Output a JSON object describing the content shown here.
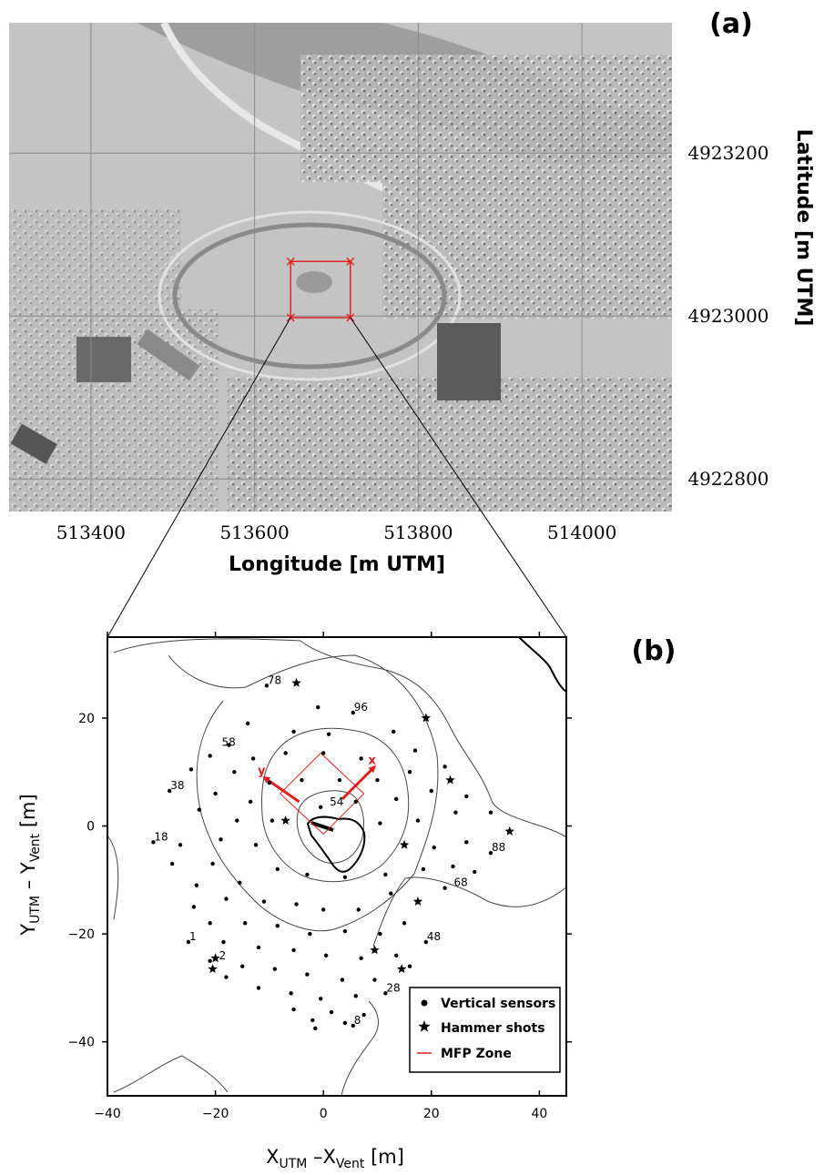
{
  "figure": {
    "panel_a_label": "(a)",
    "panel_b_label": "(b)"
  },
  "colors": {
    "frame": "#000000",
    "grid": "#8c8c8c",
    "mfp": "#e02020",
    "contour": "#444444",
    "terrain_dark": "#7a7a7a",
    "terrain_light": "#cfcfcf"
  },
  "chart_data": [
    {
      "type": "map",
      "panel": "(a)",
      "xlabel": "Longitude [m UTM]",
      "ylabel": "Latitude [m UTM]",
      "xlim": [
        513300,
        514110
      ],
      "ylim": [
        4922760,
        4923360
      ],
      "x_ticks": [
        513400,
        513600,
        513800,
        514000
      ],
      "y_ticks": [
        4922800,
        4923000,
        4923200
      ],
      "grid": true,
      "inset_box": {
        "x": [
          513644,
          513717
        ],
        "y": [
          4922998,
          4923067
        ]
      }
    },
    {
      "type": "scatter",
      "panel": "(b)",
      "xlabel": "X_UTM – X_Vent [m]",
      "ylabel": "Y_UTM – Y_Vent [m]",
      "xlabel_parts": {
        "a": "X",
        "a_sub": "UTM",
        "mid": " –X",
        "b_sub": "Vent",
        "unit": " [m]"
      },
      "ylabel_parts": {
        "a": "Y",
        "a_sub": "UTM",
        "mid": " – Y",
        "b_sub": "Vent",
        "unit": " [m]"
      },
      "xlim": [
        -40,
        45
      ],
      "ylim": [
        -50,
        35
      ],
      "x_ticks": [
        -40,
        -20,
        0,
        20,
        40
      ],
      "y_ticks": [
        -40,
        -20,
        0,
        20
      ],
      "legend_position": "bottom-right",
      "legend": [
        {
          "label": "Vertical sensors",
          "symbol": "circle"
        },
        {
          "label": "Hammer shots",
          "symbol": "star"
        },
        {
          "label": "MFP Zone",
          "symbol": "line"
        }
      ],
      "sensors": [
        [
          -10.5,
          26.0
        ],
        [
          -1,
          22.0
        ],
        [
          5.5,
          21.0
        ],
        [
          -14,
          19.0
        ],
        [
          -5.5,
          17.5
        ],
        [
          1,
          17.0
        ],
        [
          -17.5,
          15.0
        ],
        [
          13,
          17.5
        ],
        [
          -21,
          13.0
        ],
        [
          -13,
          12.5
        ],
        [
          -7,
          13.5
        ],
        [
          0,
          13.5
        ],
        [
          7,
          12.5
        ],
        [
          17,
          14.0
        ],
        [
          -24.5,
          10.5
        ],
        [
          -16.5,
          10.0
        ],
        [
          -10,
          8.0
        ],
        [
          -4,
          8.5
        ],
        [
          3,
          8.5
        ],
        [
          10,
          8.5
        ],
        [
          16,
          10.0
        ],
        [
          22.5,
          11.0
        ],
        [
          -28.5,
          6.5
        ],
        [
          -20,
          6.0
        ],
        [
          -13.5,
          4.5
        ],
        [
          -0.5,
          3.5
        ],
        [
          6,
          4.5
        ],
        [
          13.5,
          5.0
        ],
        [
          20,
          6.5
        ],
        [
          26.5,
          5.5
        ],
        [
          -23,
          3.0
        ],
        [
          -16,
          1.0
        ],
        [
          -9.5,
          1.0
        ],
        [
          10.5,
          0.5
        ],
        [
          17.5,
          1.0
        ],
        [
          24.5,
          2.5
        ],
        [
          31,
          2.5
        ],
        [
          -31.5,
          -3.0
        ],
        [
          -26.5,
          -3.5
        ],
        [
          -19,
          -2.5
        ],
        [
          -12.5,
          -3.5
        ],
        [
          20.5,
          -4.0
        ],
        [
          26.5,
          -3.0
        ],
        [
          -28,
          -7.0
        ],
        [
          -20.5,
          -7.0
        ],
        [
          -8.5,
          -8.0
        ],
        [
          -3,
          -9.0
        ],
        [
          4,
          -9.5
        ],
        [
          11.5,
          -9.0
        ],
        [
          18.5,
          -8.0
        ],
        [
          24,
          -7.5
        ],
        [
          28,
          -8.5
        ],
        [
          31,
          -5.0
        ],
        [
          -23.5,
          -11.0
        ],
        [
          -15.5,
          -10.5
        ],
        [
          22.5,
          -11.5
        ],
        [
          -18,
          -13.5
        ],
        [
          -11,
          -14.0
        ],
        [
          -5,
          -14.5
        ],
        [
          0,
          -15.5
        ],
        [
          6.5,
          -15.5
        ],
        [
          12.5,
          -12.5
        ],
        [
          -24,
          -15.0
        ],
        [
          -21,
          -18.0
        ],
        [
          -14.5,
          -18.0
        ],
        [
          -8.5,
          -18.5
        ],
        [
          -2.5,
          -20.0
        ],
        [
          4,
          -19.5
        ],
        [
          10.5,
          -20.0
        ],
        [
          15,
          -18.0
        ],
        [
          -25,
          -21.5
        ],
        [
          -18.5,
          -21.5
        ],
        [
          -12,
          -22.5
        ],
        [
          -5.5,
          -23.0
        ],
        [
          0.5,
          -24.0
        ],
        [
          7,
          -24.5
        ],
        [
          13.5,
          -24.0
        ],
        [
          19,
          -21.5
        ],
        [
          -21,
          -25.0
        ],
        [
          -15,
          -26.0
        ],
        [
          -9,
          -26.5
        ],
        [
          -3,
          -27.5
        ],
        [
          3.5,
          -28.5
        ],
        [
          9.5,
          -28.5
        ],
        [
          16,
          -26.0
        ],
        [
          -18,
          -28.0
        ],
        [
          -12,
          -30.0
        ],
        [
          -6,
          -31.0
        ],
        [
          -0.5,
          -32.0
        ],
        [
          6,
          -31.5
        ],
        [
          11.5,
          -31.0
        ],
        [
          -5.5,
          -34.0
        ],
        [
          1.5,
          -34.5
        ],
        [
          -2,
          -36.0
        ],
        [
          4,
          -36.5
        ],
        [
          7.5,
          -35.0
        ],
        [
          -1.5,
          -37.5
        ],
        [
          5.5,
          -37.0
        ]
      ],
      "hammer_shots": [
        [
          -5,
          26.5
        ],
        [
          19,
          20.0
        ],
        [
          -7,
          1.0
        ],
        [
          23.5,
          8.5
        ],
        [
          34.5,
          -1.0
        ],
        [
          15,
          -3.5
        ],
        [
          17.5,
          -14.0
        ],
        [
          9.5,
          -23.0
        ],
        [
          14.5,
          -26.5
        ],
        [
          -20.5,
          -26.5
        ],
        [
          -20,
          -24.5
        ]
      ],
      "sensor_labels": [
        {
          "label": "78",
          "x": -10.5,
          "y": 26.0
        },
        {
          "label": "96",
          "x": 5.5,
          "y": 21.0
        },
        {
          "label": "58",
          "x": -19,
          "y": 14.5
        },
        {
          "label": "38",
          "x": -28.5,
          "y": 6.5
        },
        {
          "label": "54",
          "x": 1,
          "y": 3.5
        },
        {
          "label": "18",
          "x": -31.5,
          "y": -3.0
        },
        {
          "label": "88",
          "x": 31,
          "y": -5.0
        },
        {
          "label": "68",
          "x": 24,
          "y": -11.5
        },
        {
          "label": "1",
          "x": -25,
          "y": -21.5
        },
        {
          "label": "48",
          "x": 19,
          "y": -21.5
        },
        {
          "label": "2",
          "x": -19.5,
          "y": -25.0
        },
        {
          "label": "28",
          "x": 11.5,
          "y": -31.0
        },
        {
          "label": "8",
          "x": 5.5,
          "y": -37.0
        }
      ],
      "mfp_zone": [
        [
          -8,
          6
        ],
        [
          -0.5,
          13.5
        ],
        [
          7.5,
          6
        ],
        [
          0,
          -1.5
        ]
      ],
      "axis_arrows": [
        {
          "label": "x",
          "from": [
            3.5,
            5
          ],
          "to": [
            9.5,
            11
          ]
        },
        {
          "label": "y",
          "from": [
            -4.5,
            4.5
          ],
          "to": [
            -11,
            9
          ]
        }
      ]
    }
  ]
}
